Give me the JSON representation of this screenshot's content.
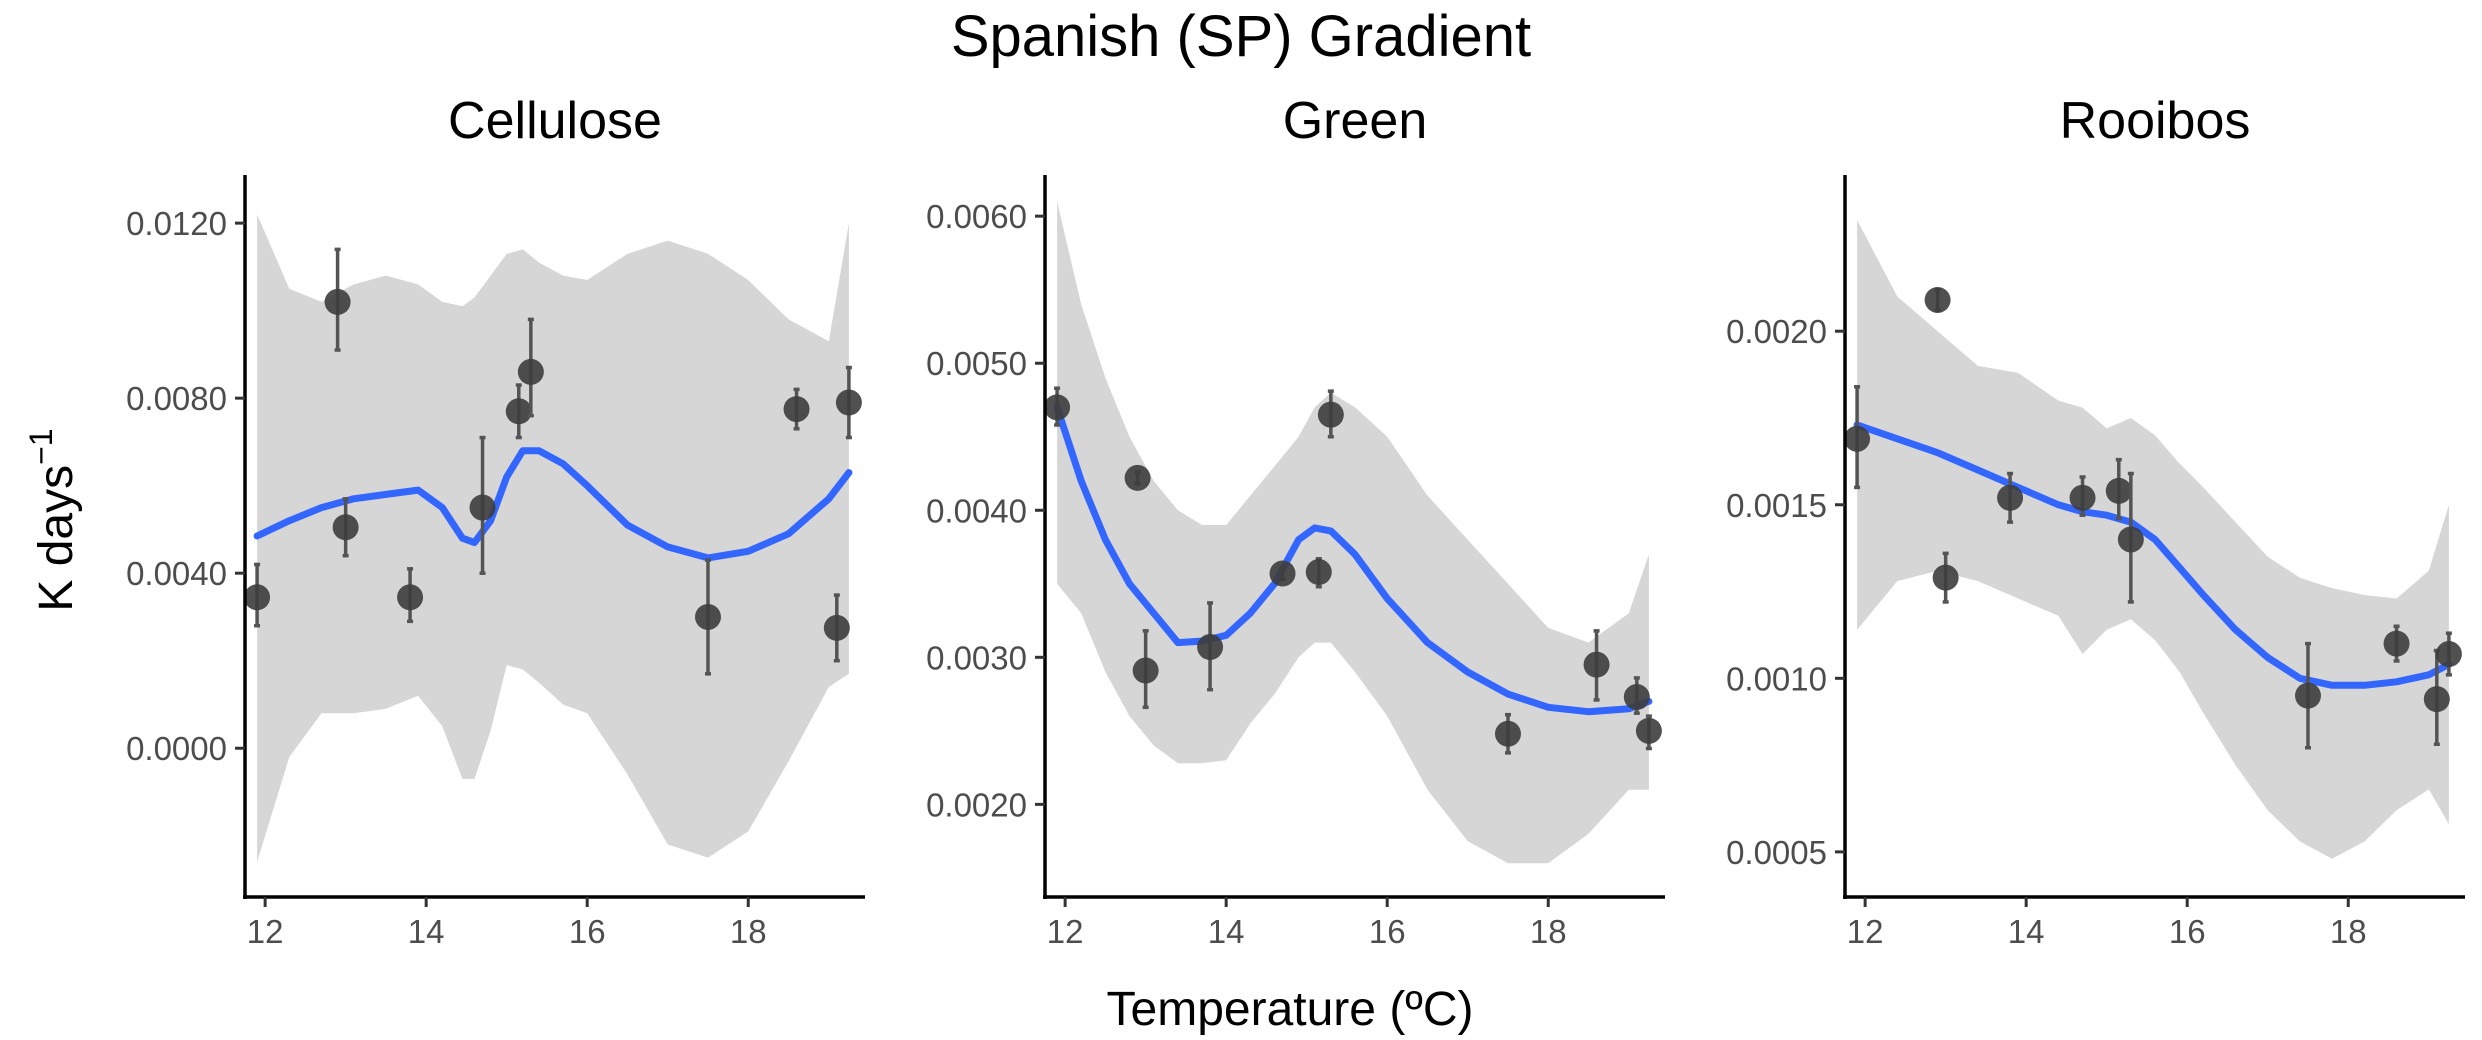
{
  "chart_data": {
    "type": "scatter",
    "title": "Spanish (SP) Gradient",
    "xlabel": "Temperature (ºC)",
    "ylabel_text": "K days",
    "ylabel_superscript": "−1",
    "colors": {
      "smooth": "#3366ff",
      "ribbon": "#d6d6d6",
      "points": "#3d3d3d",
      "errorbars": "#545454",
      "axes": "#000000"
    },
    "grid": false,
    "x_ticks": [
      12,
      14,
      16,
      18
    ],
    "xlim": [
      11.75,
      19.45
    ],
    "panels": [
      {
        "name": "Cellulose",
        "ylim": [
          -0.0034,
          0.0131
        ],
        "y_ticks": [
          0.0,
          0.004,
          0.008,
          0.012
        ],
        "y_tick_labels": [
          "0.0000",
          "0.0040",
          "0.0080",
          "0.0120"
        ],
        "points": [
          {
            "x": 11.9,
            "y": 0.00345,
            "lo": 0.0028,
            "hi": 0.0042
          },
          {
            "x": 12.9,
            "y": 0.0102,
            "lo": 0.0091,
            "hi": 0.0114
          },
          {
            "x": 13.0,
            "y": 0.00505,
            "lo": 0.0044,
            "hi": 0.0057
          },
          {
            "x": 13.8,
            "y": 0.00345,
            "lo": 0.0029,
            "hi": 0.0041
          },
          {
            "x": 14.7,
            "y": 0.0055,
            "lo": 0.004,
            "hi": 0.0071
          },
          {
            "x": 15.15,
            "y": 0.0077,
            "lo": 0.0071,
            "hi": 0.0083
          },
          {
            "x": 15.3,
            "y": 0.0086,
            "lo": 0.0076,
            "hi": 0.0098
          },
          {
            "x": 17.5,
            "y": 0.003,
            "lo": 0.0017,
            "hi": 0.0043
          },
          {
            "x": 18.6,
            "y": 0.00775,
            "lo": 0.0073,
            "hi": 0.0082
          },
          {
            "x": 19.1,
            "y": 0.00275,
            "lo": 0.002,
            "hi": 0.0035
          },
          {
            "x": 19.25,
            "y": 0.0079,
            "lo": 0.0071,
            "hi": 0.0087
          }
        ],
        "smooth_x": [
          11.9,
          12.3,
          12.7,
          13.1,
          13.5,
          13.9,
          14.2,
          14.45,
          14.6,
          14.8,
          15.0,
          15.2,
          15.4,
          15.7,
          16.0,
          16.5,
          17.0,
          17.5,
          18.0,
          18.5,
          19.0,
          19.25
        ],
        "smooth_y": [
          0.00485,
          0.0052,
          0.0055,
          0.0057,
          0.0058,
          0.0059,
          0.0055,
          0.0048,
          0.0047,
          0.0052,
          0.0062,
          0.0068,
          0.0068,
          0.0065,
          0.006,
          0.0051,
          0.0046,
          0.00435,
          0.0045,
          0.0049,
          0.0057,
          0.0063
        ],
        "ribbon_upper": [
          0.0122,
          0.0105,
          0.0102,
          0.0106,
          0.0108,
          0.0106,
          0.0102,
          0.0101,
          0.0103,
          0.0108,
          0.0113,
          0.0114,
          0.0111,
          0.0108,
          0.0107,
          0.0113,
          0.0116,
          0.0113,
          0.0107,
          0.0098,
          0.0093,
          0.012
        ],
        "ribbon_lower": [
          -0.0026,
          -0.0002,
          0.0008,
          0.0008,
          0.0009,
          0.0012,
          0.0005,
          -0.0007,
          -0.0007,
          0.0004,
          0.0019,
          0.0018,
          0.0015,
          0.001,
          0.0008,
          -0.0006,
          -0.0022,
          -0.0025,
          -0.0019,
          -0.0003,
          0.0014,
          0.0017
        ]
      },
      {
        "name": "Green",
        "ylim": [
          0.00137,
          0.00628
        ],
        "y_ticks": [
          0.002,
          0.003,
          0.004,
          0.005,
          0.006
        ],
        "y_tick_labels": [
          "0.0020",
          "0.0030",
          "0.0040",
          "0.0050",
          "0.0060"
        ],
        "points": [
          {
            "x": 11.9,
            "y": 0.0047,
            "lo": 0.00458,
            "hi": 0.00483
          },
          {
            "x": 12.9,
            "y": 0.00422,
            "lo": 0.00418,
            "hi": 0.00426
          },
          {
            "x": 13.0,
            "y": 0.00291,
            "lo": 0.00266,
            "hi": 0.00318
          },
          {
            "x": 13.8,
            "y": 0.00307,
            "lo": 0.00278,
            "hi": 0.00337
          },
          {
            "x": 14.7,
            "y": 0.00357,
            "lo": 0.00353,
            "hi": 0.00361
          },
          {
            "x": 15.15,
            "y": 0.00358,
            "lo": 0.00348,
            "hi": 0.00367
          },
          {
            "x": 15.3,
            "y": 0.00465,
            "lo": 0.0045,
            "hi": 0.00481
          },
          {
            "x": 17.5,
            "y": 0.00248,
            "lo": 0.00235,
            "hi": 0.00261
          },
          {
            "x": 18.6,
            "y": 0.00295,
            "lo": 0.00271,
            "hi": 0.00318
          },
          {
            "x": 19.1,
            "y": 0.00273,
            "lo": 0.00262,
            "hi": 0.00286
          },
          {
            "x": 19.25,
            "y": 0.0025,
            "lo": 0.00238,
            "hi": 0.0026
          }
        ],
        "smooth_x": [
          11.9,
          12.2,
          12.5,
          12.8,
          13.1,
          13.4,
          13.7,
          14.0,
          14.3,
          14.6,
          14.9,
          15.1,
          15.3,
          15.6,
          16.0,
          16.5,
          17.0,
          17.5,
          18.0,
          18.5,
          19.0,
          19.25
        ],
        "smooth_y": [
          0.0047,
          0.0042,
          0.0038,
          0.0035,
          0.0033,
          0.0031,
          0.00311,
          0.00315,
          0.0033,
          0.0035,
          0.0038,
          0.00388,
          0.00386,
          0.0037,
          0.0034,
          0.0031,
          0.0029,
          0.00275,
          0.00266,
          0.00263,
          0.00265,
          0.0027
        ],
        "ribbon_upper": [
          0.0061,
          0.0054,
          0.0049,
          0.0045,
          0.0042,
          0.004,
          0.0039,
          0.0039,
          0.0041,
          0.0043,
          0.0045,
          0.0047,
          0.0048,
          0.0047,
          0.0045,
          0.0041,
          0.0038,
          0.0035,
          0.0032,
          0.0031,
          0.0033,
          0.0037
        ],
        "ribbon_lower": [
          0.0035,
          0.0033,
          0.0029,
          0.0026,
          0.0024,
          0.00228,
          0.00228,
          0.0023,
          0.00255,
          0.00275,
          0.003,
          0.0031,
          0.0031,
          0.0029,
          0.0026,
          0.0021,
          0.00175,
          0.0016,
          0.0016,
          0.0018,
          0.0021,
          0.0021
        ]
      },
      {
        "name": "Rooibos",
        "ylim": [
          0.00037,
          0.00245
        ],
        "y_ticks": [
          0.0005,
          0.001,
          0.0015,
          0.002
        ],
        "y_tick_labels": [
          "0.0005",
          "0.0010",
          "0.0015",
          "0.0020"
        ],
        "points": [
          {
            "x": 11.9,
            "y": 0.00169,
            "lo": 0.00155,
            "hi": 0.00184
          },
          {
            "x": 12.9,
            "y": 0.00209,
            "lo": 0.00206,
            "hi": 0.00212
          },
          {
            "x": 13.0,
            "y": 0.00129,
            "lo": 0.00122,
            "hi": 0.00136
          },
          {
            "x": 13.8,
            "y": 0.00152,
            "lo": 0.00145,
            "hi": 0.00159
          },
          {
            "x": 14.7,
            "y": 0.00152,
            "lo": 0.00147,
            "hi": 0.00158
          },
          {
            "x": 15.15,
            "y": 0.00154,
            "lo": 0.00146,
            "hi": 0.00163
          },
          {
            "x": 15.3,
            "y": 0.0014,
            "lo": 0.00122,
            "hi": 0.00159
          },
          {
            "x": 17.5,
            "y": 0.00095,
            "lo": 0.0008,
            "hi": 0.0011
          },
          {
            "x": 18.6,
            "y": 0.0011,
            "lo": 0.00105,
            "hi": 0.00115
          },
          {
            "x": 19.1,
            "y": 0.00094,
            "lo": 0.00081,
            "hi": 0.00108
          },
          {
            "x": 19.25,
            "y": 0.00107,
            "lo": 0.00101,
            "hi": 0.00113
          }
        ],
        "smooth_x": [
          11.9,
          12.4,
          12.9,
          13.4,
          13.9,
          14.4,
          14.7,
          15.0,
          15.3,
          15.6,
          15.9,
          16.2,
          16.6,
          17.0,
          17.4,
          17.8,
          18.2,
          18.6,
          19.0,
          19.25
        ],
        "smooth_y": [
          0.00173,
          0.00169,
          0.00165,
          0.0016,
          0.00155,
          0.0015,
          0.00148,
          0.00147,
          0.00145,
          0.0014,
          0.00132,
          0.00124,
          0.00114,
          0.00106,
          0.001,
          0.00098,
          0.00098,
          0.00099,
          0.00101,
          0.00104
        ],
        "ribbon_upper": [
          0.00232,
          0.0021,
          0.002,
          0.0019,
          0.00188,
          0.0018,
          0.00178,
          0.00172,
          0.00175,
          0.0017,
          0.00162,
          0.00155,
          0.00145,
          0.00135,
          0.00129,
          0.00126,
          0.00124,
          0.00123,
          0.00131,
          0.0015
        ],
        "ribbon_lower": [
          0.00114,
          0.00128,
          0.00131,
          0.00128,
          0.00123,
          0.00118,
          0.00107,
          0.00114,
          0.00117,
          0.00111,
          0.00102,
          0.0009,
          0.00075,
          0.00062,
          0.00053,
          0.00048,
          0.00053,
          0.00062,
          0.00068,
          0.00058
        ]
      }
    ]
  }
}
